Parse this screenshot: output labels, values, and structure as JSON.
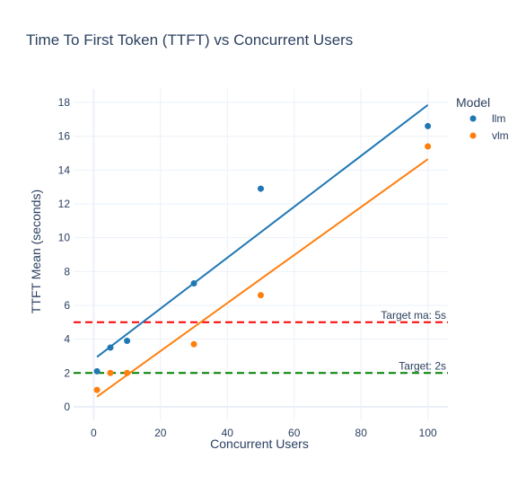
{
  "chart_data": {
    "type": "scatter",
    "title": "Time To First Token (TTFT) vs Concurrent Users",
    "xlabel": "Concurrent Users",
    "ylabel": "TTFT Mean (seconds)",
    "xlim": [
      -6,
      106
    ],
    "ylim": [
      -0.8,
      18.8
    ],
    "x_ticks": [
      0,
      20,
      40,
      60,
      80,
      100
    ],
    "y_ticks": [
      0,
      2,
      4,
      6,
      8,
      10,
      12,
      14,
      16,
      18
    ],
    "grid": true,
    "legend": {
      "title": "Model",
      "placement": "top-right"
    },
    "series": [
      {
        "name": "llm",
        "color": "#1f77b4",
        "x": [
          1,
          5,
          10,
          30,
          50,
          100
        ],
        "y": [
          2.1,
          3.5,
          3.9,
          7.3,
          12.9,
          16.6
        ],
        "trendline": {
          "x": [
            1,
            100
          ],
          "y": [
            2.95,
            17.85
          ]
        }
      },
      {
        "name": "vlm",
        "color": "#ff7f0e",
        "x": [
          1,
          5,
          10,
          30,
          50,
          100
        ],
        "y": [
          1.0,
          2.0,
          2.0,
          3.7,
          6.6,
          15.4
        ],
        "trendline": {
          "x": [
            1,
            100
          ],
          "y": [
            0.6,
            14.65
          ]
        }
      }
    ],
    "reference_lines": [
      {
        "y": 5,
        "label": "Target ma: 5s",
        "color": "#ff0000"
      },
      {
        "y": 2,
        "label": "Target: 2s",
        "color": "#008000"
      }
    ]
  }
}
